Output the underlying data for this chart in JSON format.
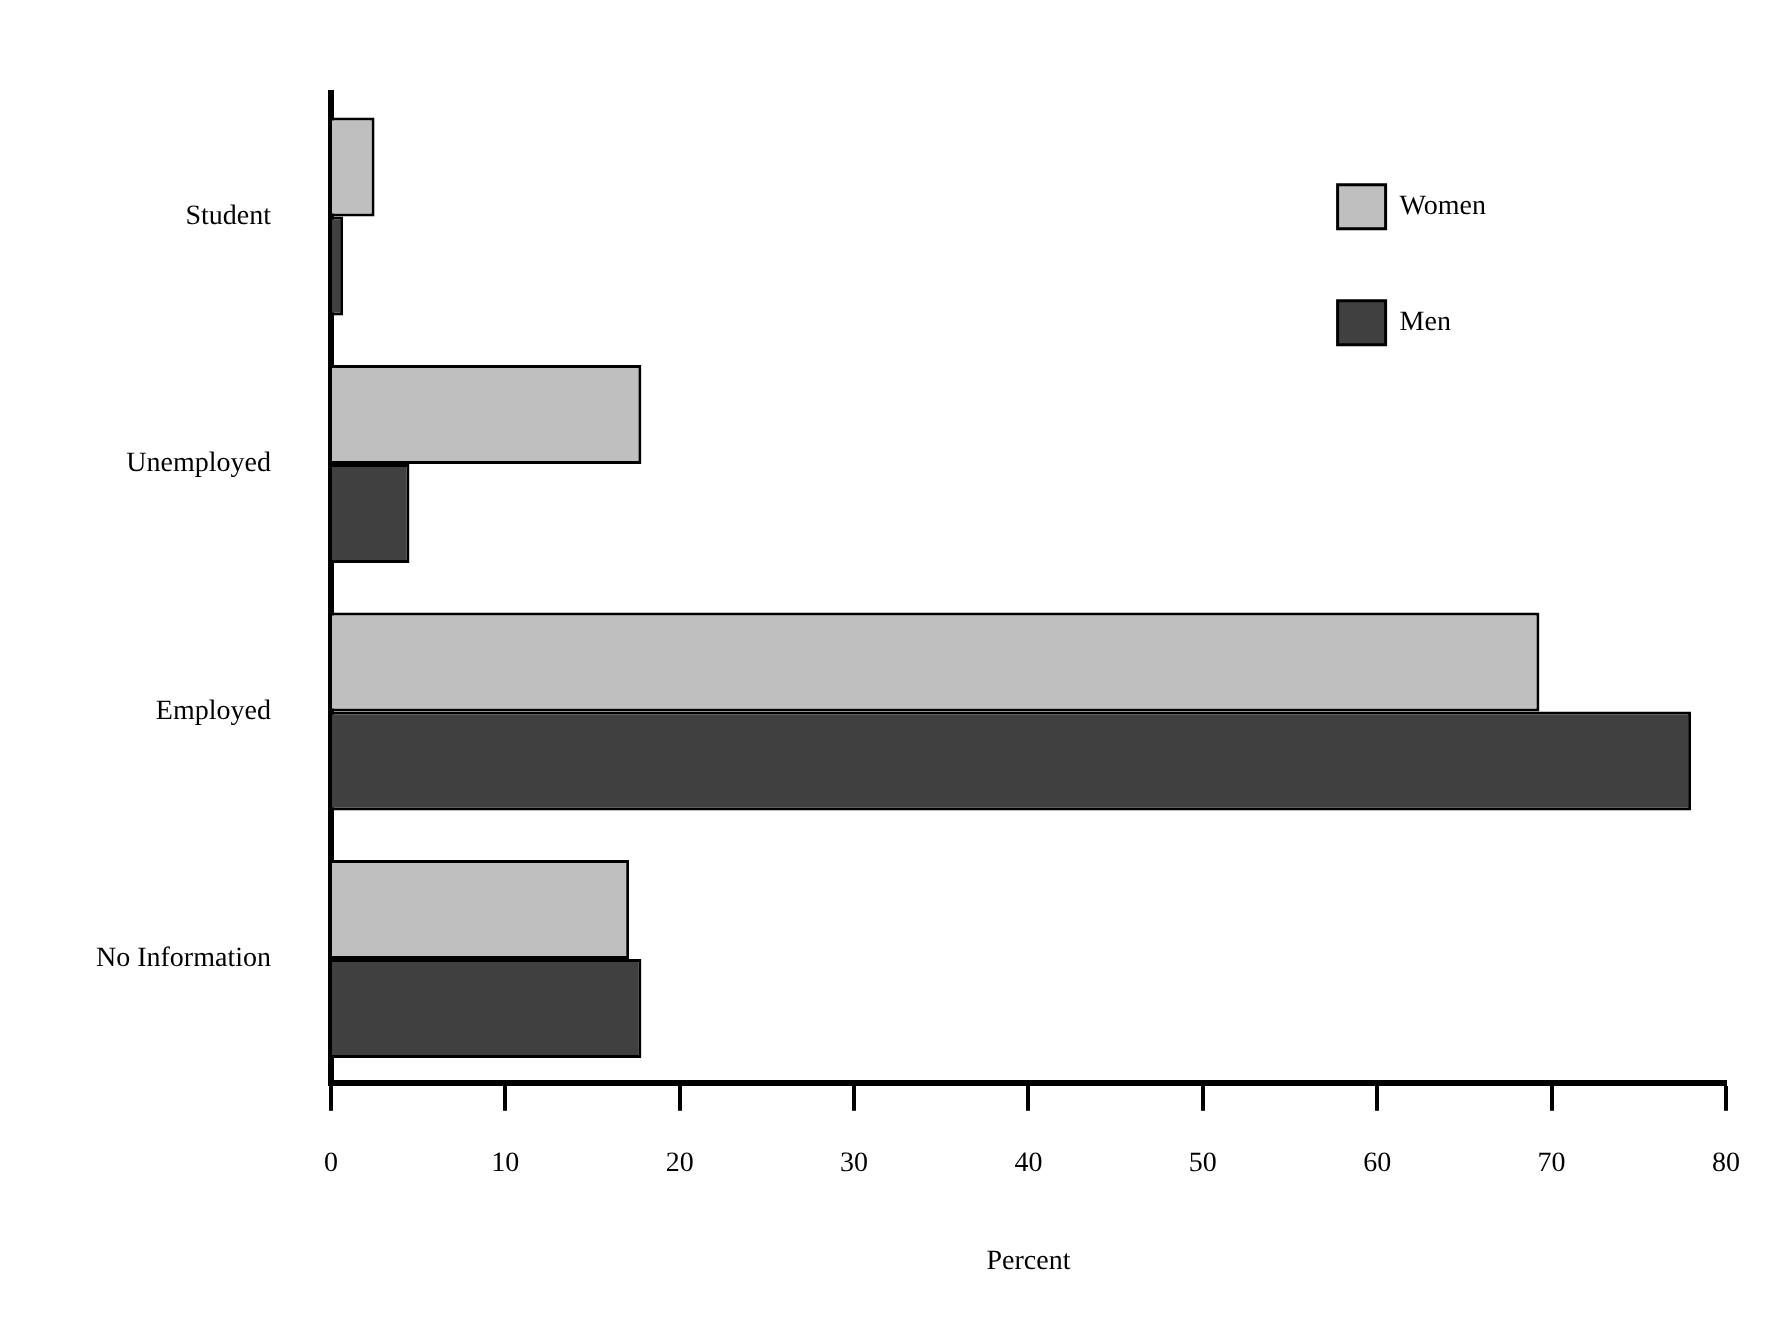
{
  "chart_data": {
    "type": "bar",
    "orientation": "horizontal",
    "xlabel": "Percent",
    "categories": [
      "Student",
      "Unemployed",
      "Employed",
      "No Information"
    ],
    "series": [
      {
        "name": "Women",
        "color": "#bfbfbf",
        "values": [
          2.5,
          17.8,
          69.3,
          17.1
        ]
      },
      {
        "name": "Men",
        "color": "#404040",
        "values": [
          0.7,
          4.5,
          78,
          17.8
        ]
      }
    ],
    "xlim": [
      0,
      80
    ],
    "xticks": [
      0,
      10,
      20,
      30,
      40,
      50,
      60,
      70,
      80
    ],
    "grid": false,
    "legend": "top right"
  }
}
